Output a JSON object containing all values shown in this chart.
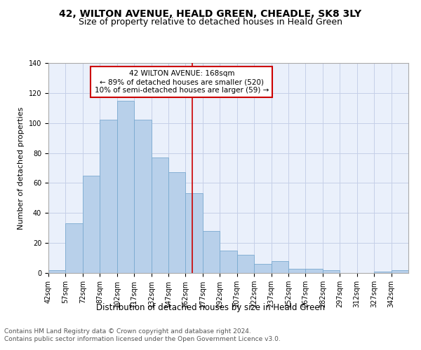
{
  "title": "42, WILTON AVENUE, HEALD GREEN, CHEADLE, SK8 3LY",
  "subtitle": "Size of property relative to detached houses in Heald Green",
  "xlabel": "Distribution of detached houses by size in Heald Green",
  "ylabel": "Number of detached properties",
  "bar_color": "#b8d0ea",
  "bar_edge_color": "#7aaad0",
  "background_color": "#eaf0fb",
  "grid_color": "#c5cfe8",
  "red_line_x": 168,
  "annotation_line1": "42 WILTON AVENUE: 168sqm",
  "annotation_line2": "← 89% of detached houses are smaller (520)",
  "annotation_line3": "10% of semi-detached houses are larger (59) →",
  "annotation_box_color": "#ffffff",
  "annotation_box_edge_color": "#cc0000",
  "bins": [
    42,
    57,
    72,
    87,
    102,
    117,
    132,
    147,
    162,
    177,
    192,
    207,
    222,
    237,
    252,
    267,
    282,
    297,
    312,
    327,
    342
  ],
  "values": [
    2,
    33,
    65,
    102,
    115,
    102,
    77,
    67,
    53,
    28,
    15,
    12,
    6,
    8,
    3,
    3,
    2,
    0,
    0,
    1,
    2
  ],
  "ylim": [
    0,
    140
  ],
  "yticks": [
    0,
    20,
    40,
    60,
    80,
    100,
    120,
    140
  ],
  "footer_line1": "Contains HM Land Registry data © Crown copyright and database right 2024.",
  "footer_line2": "Contains public sector information licensed under the Open Government Licence v3.0.",
  "title_fontsize": 10,
  "subtitle_fontsize": 9,
  "tick_fontsize": 7,
  "ylabel_fontsize": 8,
  "xlabel_fontsize": 8.5,
  "footer_fontsize": 6.5,
  "annotation_fontsize": 7.5
}
